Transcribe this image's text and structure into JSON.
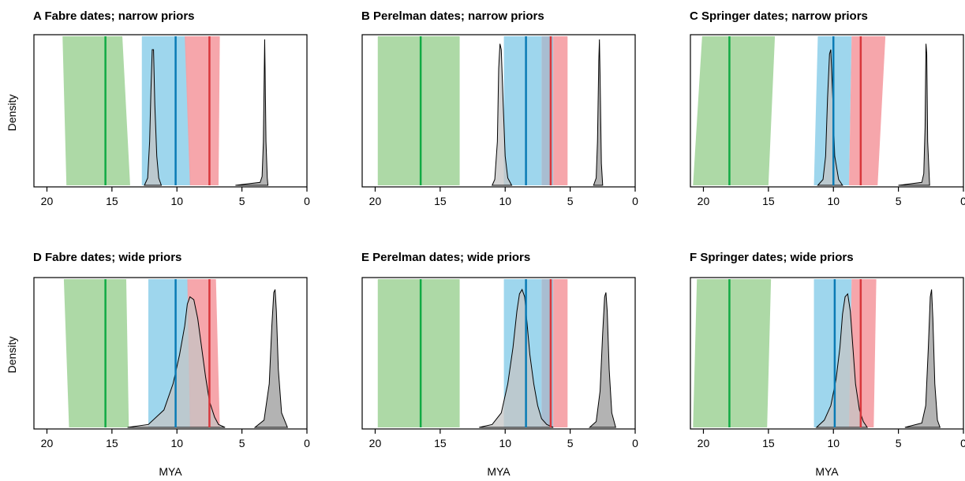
{
  "figure": {
    "y_axis_label": "Density",
    "x_axis_label": "MYA"
  },
  "chart_data": [
    {
      "type": "area",
      "title": "A Fabre dates; narrow priors",
      "xlabel": "",
      "ylabel": "Density",
      "xlim": [
        21,
        0
      ],
      "x_ticks": [
        20,
        15,
        10,
        5,
        0
      ],
      "intervals": [
        {
          "color": "#a9d7a1",
          "bottom": [
            18.5,
            13.6
          ],
          "top": [
            18.8,
            14.2
          ],
          "line": 15.5,
          "line_color": "#11aa44"
        },
        {
          "color": "#99d4ec",
          "bottom": [
            12.7,
            8.9
          ],
          "top": [
            12.7,
            9.3
          ],
          "line": 10.1,
          "line_color": "#0a7bb5"
        },
        {
          "color": "#f6a1a6",
          "bottom": [
            9.0,
            6.8
          ],
          "top": [
            9.4,
            6.7
          ],
          "line": 7.5,
          "line_color": "#d8373c"
        }
      ],
      "densities": [
        {
          "fill": "#c4c4c4",
          "x": [
            12.5,
            12.25,
            12.1,
            12.0,
            11.9,
            11.8,
            11.7,
            11.55,
            11.4,
            11.2
          ],
          "y": [
            0,
            0.05,
            0.3,
            0.65,
            0.93,
            0.93,
            0.55,
            0.2,
            0.05,
            0
          ]
        },
        {
          "fill": "#9a9a9a",
          "x": [
            5.5,
            3.6,
            3.45,
            3.35,
            3.28,
            3.25,
            3.22,
            3.15,
            3.05,
            3.0
          ],
          "y": [
            0,
            0.02,
            0.06,
            0.3,
            0.8,
            1.0,
            0.8,
            0.3,
            0.05,
            0
          ]
        }
      ]
    },
    {
      "type": "area",
      "title": "B Perelman dates; narrow priors",
      "xlabel": "",
      "ylabel": "",
      "xlim": [
        21,
        0
      ],
      "x_ticks": [
        20,
        15,
        10,
        5,
        0
      ],
      "intervals": [
        {
          "color": "#a9d7a1",
          "bottom": [
            19.8,
            13.5
          ],
          "top": [
            19.8,
            13.5
          ],
          "line": 16.5,
          "line_color": "#11aa44"
        },
        {
          "color": "#99d4ec",
          "bottom": [
            10.1,
            7.2
          ],
          "top": [
            10.1,
            7.2
          ],
          "line": 8.4,
          "line_color": "#0a7bb5"
        },
        {
          "color": "#a3b9cf",
          "bottom": [
            7.2,
            6.3
          ],
          "top": [
            7.2,
            6.3
          ],
          "line": null,
          "line_color": ""
        },
        {
          "color": "#f6a1a6",
          "bottom": [
            6.3,
            5.2
          ],
          "top": [
            6.3,
            5.2
          ],
          "line": 6.5,
          "line_color": "#d8373c"
        }
      ],
      "densities": [
        {
          "fill": "#c4c4c4",
          "x": [
            11.0,
            10.8,
            10.6,
            10.5,
            10.4,
            10.3,
            10.15,
            10.0,
            9.8,
            9.5
          ],
          "y": [
            0,
            0.04,
            0.3,
            0.8,
            0.97,
            0.93,
            0.55,
            0.2,
            0.05,
            0
          ]
        },
        {
          "fill": "#9a9a9a",
          "x": [
            3.2,
            3.0,
            2.9,
            2.8,
            2.75,
            2.7,
            2.6,
            2.5
          ],
          "y": [
            0,
            0.05,
            0.3,
            0.85,
            1.0,
            0.75,
            0.15,
            0
          ]
        }
      ]
    },
    {
      "type": "area",
      "title": "C Springer dates; narrow priors",
      "xlabel": "",
      "ylabel": "",
      "xlim": [
        21,
        0
      ],
      "x_ticks": [
        20,
        15,
        10,
        5,
        0
      ],
      "intervals": [
        {
          "color": "#a9d7a1",
          "bottom": [
            20.8,
            15.0
          ],
          "top": [
            20.1,
            14.5
          ],
          "line": 18.0,
          "line_color": "#11aa44"
        },
        {
          "color": "#99d4ec",
          "bottom": [
            11.5,
            8.8
          ],
          "top": [
            11.2,
            8.6
          ],
          "line": 10.0,
          "line_color": "#0a7bb5"
        },
        {
          "color": "#f6a1a6",
          "bottom": [
            8.8,
            6.6
          ],
          "top": [
            8.6,
            6.0
          ],
          "line": 7.9,
          "line_color": "#d8373c"
        }
      ],
      "densities": [
        {
          "fill": "#c4c4c4",
          "x": [
            11.2,
            10.8,
            10.6,
            10.45,
            10.3,
            10.2,
            10.05,
            9.9,
            9.6,
            9.3
          ],
          "y": [
            0,
            0.04,
            0.2,
            0.6,
            0.9,
            0.93,
            0.6,
            0.2,
            0.04,
            0
          ]
        },
        {
          "fill": "#9a9a9a",
          "x": [
            5.0,
            3.2,
            3.05,
            2.95,
            2.88,
            2.82,
            2.75,
            2.6
          ],
          "y": [
            0,
            0.02,
            0.08,
            0.4,
            0.97,
            0.9,
            0.3,
            0
          ]
        }
      ]
    },
    {
      "type": "area",
      "title": "D Fabre dates; wide priors",
      "xlabel": "MYA",
      "ylabel": "Density",
      "xlim": [
        21,
        0
      ],
      "x_ticks": [
        20,
        15,
        10,
        5,
        0
      ],
      "intervals": [
        {
          "color": "#a9d7a1",
          "bottom": [
            18.3,
            13.7
          ],
          "top": [
            18.7,
            13.9
          ],
          "line": 15.5,
          "line_color": "#11aa44"
        },
        {
          "color": "#99d4ec",
          "bottom": [
            12.2,
            8.9
          ],
          "top": [
            12.2,
            9.1
          ],
          "line": 10.1,
          "line_color": "#0a7bb5"
        },
        {
          "color": "#f6a1a6",
          "bottom": [
            9.0,
            6.7
          ],
          "top": [
            9.2,
            7.0
          ],
          "line": 7.5,
          "line_color": "#d8373c"
        }
      ],
      "densities": [
        {
          "fill": "#c4c4c4",
          "x": [
            13.8,
            12.2,
            11.0,
            10.3,
            9.8,
            9.4,
            9.2,
            9.0,
            8.7,
            8.4,
            8.1,
            7.8,
            7.5,
            7.1,
            6.8,
            6.3
          ],
          "y": [
            0,
            0.02,
            0.12,
            0.3,
            0.5,
            0.7,
            0.85,
            0.9,
            0.88,
            0.75,
            0.55,
            0.35,
            0.18,
            0.07,
            0.02,
            0
          ]
        },
        {
          "fill": "#9a9a9a",
          "x": [
            4.0,
            3.3,
            2.9,
            2.7,
            2.55,
            2.45,
            2.35,
            2.2,
            1.95,
            1.5
          ],
          "y": [
            0,
            0.05,
            0.3,
            0.7,
            0.93,
            0.95,
            0.8,
            0.4,
            0.1,
            0
          ]
        }
      ]
    },
    {
      "type": "area",
      "title": "E Perelman dates; wide priors",
      "xlabel": "MYA",
      "ylabel": "",
      "xlim": [
        21,
        0
      ],
      "x_ticks": [
        20,
        15,
        10,
        5,
        0
      ],
      "intervals": [
        {
          "color": "#a9d7a1",
          "bottom": [
            19.8,
            13.5
          ],
          "top": [
            19.8,
            13.5
          ],
          "line": 16.5,
          "line_color": "#11aa44"
        },
        {
          "color": "#99d4ec",
          "bottom": [
            10.1,
            7.2
          ],
          "top": [
            10.1,
            7.2
          ],
          "line": 8.4,
          "line_color": "#0a7bb5"
        },
        {
          "color": "#a3b9cf",
          "bottom": [
            7.2,
            6.3
          ],
          "top": [
            7.2,
            6.3
          ],
          "line": null,
          "line_color": ""
        },
        {
          "color": "#f6a1a6",
          "bottom": [
            6.3,
            5.2
          ],
          "top": [
            6.3,
            5.2
          ],
          "line": 6.5,
          "line_color": "#d8373c"
        }
      ],
      "densities": [
        {
          "fill": "#c4c4c4",
          "x": [
            12.0,
            11.0,
            10.3,
            9.8,
            9.4,
            9.1,
            8.9,
            8.7,
            8.5,
            8.3,
            8.1,
            7.8,
            7.5,
            7.2,
            6.8,
            6.3
          ],
          "y": [
            0,
            0.02,
            0.1,
            0.3,
            0.55,
            0.8,
            0.92,
            0.95,
            0.9,
            0.7,
            0.5,
            0.3,
            0.15,
            0.06,
            0.02,
            0
          ]
        },
        {
          "fill": "#9a9a9a",
          "x": [
            3.5,
            3.0,
            2.7,
            2.5,
            2.35,
            2.25,
            2.15,
            2.0,
            1.8,
            1.5
          ],
          "y": [
            0,
            0.04,
            0.25,
            0.65,
            0.9,
            0.93,
            0.8,
            0.4,
            0.1,
            0
          ]
        }
      ]
    },
    {
      "type": "area",
      "title": "F Springer dates; wide priors",
      "xlabel": "MYA",
      "ylabel": "",
      "xlim": [
        21,
        0
      ],
      "x_ticks": [
        20,
        15,
        10,
        5,
        0
      ],
      "intervals": [
        {
          "color": "#a9d7a1",
          "bottom": [
            20.8,
            15.1
          ],
          "top": [
            20.5,
            14.8
          ],
          "line": 18.0,
          "line_color": "#11aa44"
        },
        {
          "color": "#99d4ec",
          "bottom": [
            11.5,
            8.8
          ],
          "top": [
            11.5,
            8.6
          ],
          "line": 9.9,
          "line_color": "#0a7bb5"
        },
        {
          "color": "#f6a1a6",
          "bottom": [
            8.8,
            6.9
          ],
          "top": [
            8.6,
            6.7
          ],
          "line": 7.9,
          "line_color": "#d8373c"
        }
      ],
      "densities": [
        {
          "fill": "#c4c4c4",
          "x": [
            11.3,
            10.7,
            10.2,
            9.8,
            9.5,
            9.3,
            9.1,
            8.9,
            8.7,
            8.5,
            8.3,
            8.0,
            7.7,
            7.4
          ],
          "y": [
            0,
            0.05,
            0.15,
            0.33,
            0.55,
            0.78,
            0.9,
            0.92,
            0.8,
            0.55,
            0.3,
            0.12,
            0.04,
            0
          ]
        },
        {
          "fill": "#9a9a9a",
          "x": [
            4.5,
            3.2,
            2.9,
            2.7,
            2.55,
            2.45,
            2.35,
            2.2,
            2.0,
            1.8
          ],
          "y": [
            0,
            0.03,
            0.15,
            0.55,
            0.9,
            0.95,
            0.75,
            0.3,
            0.05,
            0
          ]
        }
      ]
    }
  ]
}
